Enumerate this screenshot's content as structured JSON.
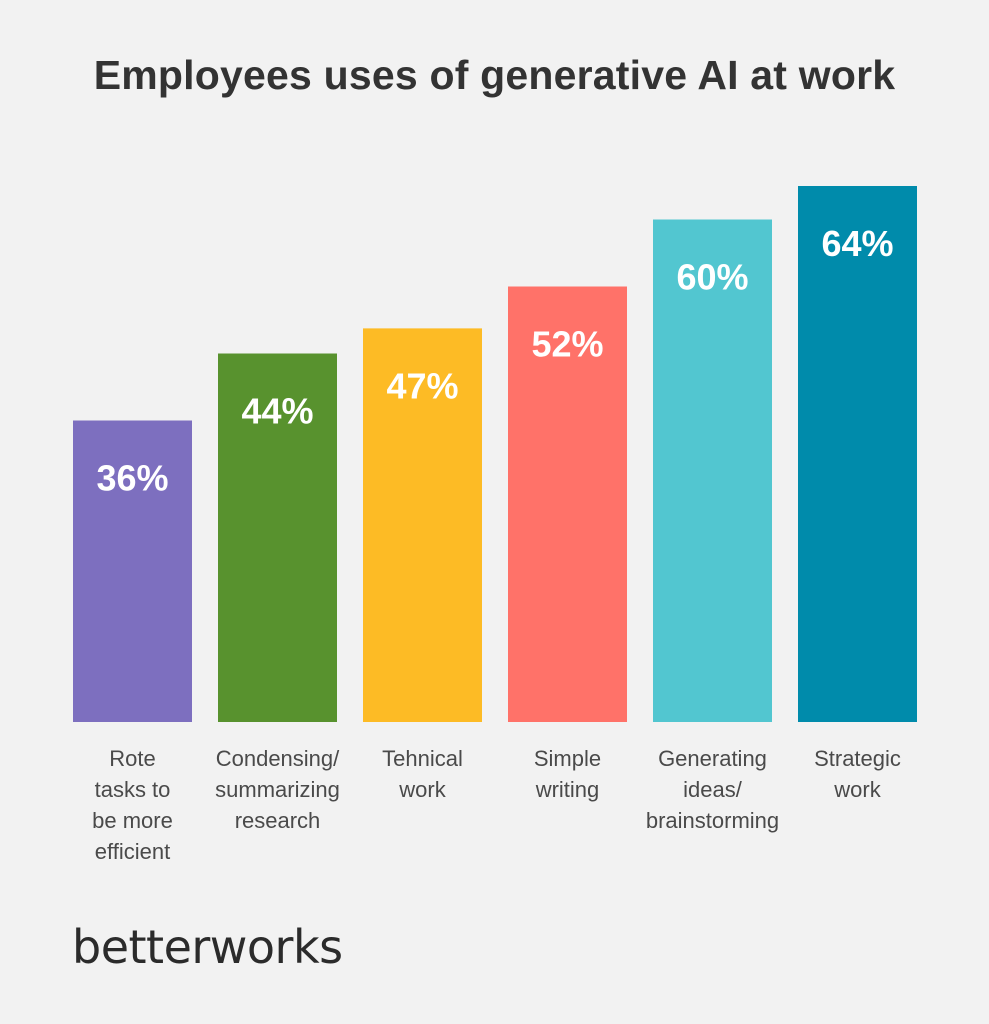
{
  "chart_data": {
    "type": "bar",
    "title": "Employees uses of generative AI at work",
    "xlabel": "",
    "ylabel": "",
    "ylim": [
      0,
      64
    ],
    "grid": false,
    "categories": [
      [
        "Rote",
        "tasks to",
        "be more",
        "efficient"
      ],
      [
        "Condensing/",
        "summarizing",
        "research"
      ],
      [
        "Tehnical",
        "work"
      ],
      [
        "Simple",
        "writing"
      ],
      [
        "Generating",
        "ideas/",
        "brainstorming"
      ],
      [
        "Strategic",
        "work"
      ]
    ],
    "values": [
      36,
      44,
      47,
      52,
      60,
      64
    ],
    "value_labels": [
      "36%",
      "44%",
      "47%",
      "52%",
      "60%",
      "64%"
    ],
    "colors": [
      "#7d6fbf",
      "#58922e",
      "#fdbb25",
      "#ff7269",
      "#52c6d0",
      "#008bab"
    ]
  },
  "brand": {
    "name": "betterworks"
  }
}
